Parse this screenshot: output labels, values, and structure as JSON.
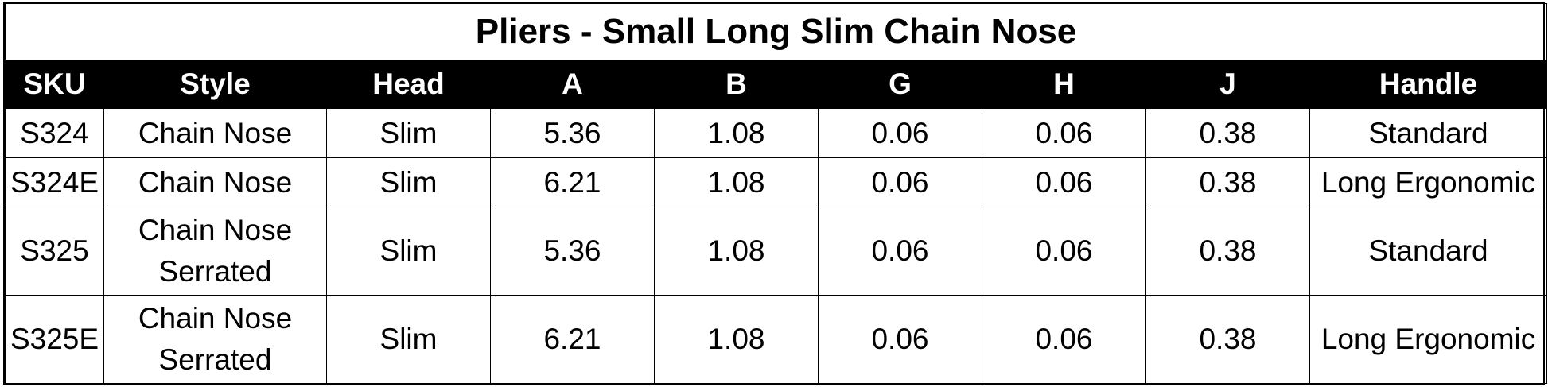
{
  "table": {
    "title": "Pliers - Small Long Slim Chain Nose",
    "columns": [
      "SKU",
      "Style",
      "Head",
      "A",
      "B",
      "G",
      "H",
      "J",
      "Handle"
    ],
    "rows": [
      {
        "sku": "S324",
        "style": [
          "Chain Nose"
        ],
        "head": "Slim",
        "a": "5.36",
        "b": "1.08",
        "g": "0.06",
        "h": "0.06",
        "j": "0.38",
        "handle": "Standard"
      },
      {
        "sku": "S324E",
        "style": [
          "Chain Nose"
        ],
        "head": "Slim",
        "a": "6.21",
        "b": "1.08",
        "g": "0.06",
        "h": "0.06",
        "j": "0.38",
        "handle": "Long Ergonomic"
      },
      {
        "sku": "S325",
        "style": [
          "Chain Nose",
          "Serrated"
        ],
        "head": "Slim",
        "a": "5.36",
        "b": "1.08",
        "g": "0.06",
        "h": "0.06",
        "j": "0.38",
        "handle": "Standard"
      },
      {
        "sku": "S325E",
        "style": [
          "Chain Nose",
          "Serrated"
        ],
        "head": "Slim",
        "a": "6.21",
        "b": "1.08",
        "g": "0.06",
        "h": "0.06",
        "j": "0.38",
        "handle": "Long Ergonomic"
      }
    ]
  },
  "colors": {
    "header_bg": "#000000",
    "header_text": "#ffffff",
    "grid": "#000000"
  }
}
